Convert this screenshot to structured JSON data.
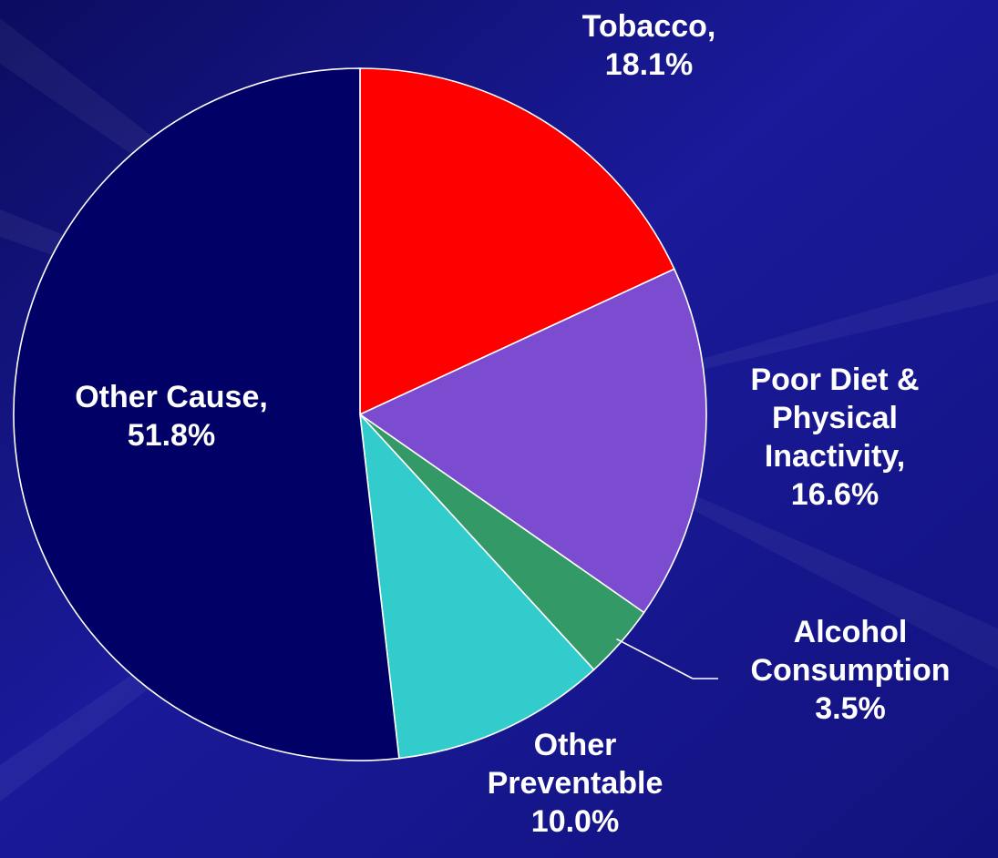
{
  "colors": {
    "background": "#14148a",
    "outline": "#ffffff",
    "label": "#ffffff"
  },
  "chart_data": {
    "type": "pie",
    "start_angle_deg": 0,
    "direction": "clockwise",
    "slices": [
      {
        "name": "Tobacco",
        "value": 18.1,
        "color": "#ff0000",
        "label_lines": [
          "Tobacco,",
          "18.1%"
        ]
      },
      {
        "name": "Poor Diet & Physical Inactivity",
        "value": 16.6,
        "color": "#7b4bd0",
        "label_lines": [
          "Poor Diet &",
          "Physical",
          "Inactivity,",
          "16.6%"
        ]
      },
      {
        "name": "Alcohol Consumption",
        "value": 3.5,
        "color": "#339966",
        "label_lines": [
          "Alcohol",
          "Consumption",
          "3.5%"
        ]
      },
      {
        "name": "Other Preventable",
        "value": 10.0,
        "color": "#33cccc",
        "label_lines": [
          "Other",
          "Preventable",
          "10.0%"
        ]
      },
      {
        "name": "Other Cause",
        "value": 51.8,
        "color": "#000066",
        "label_lines": [
          "Other Cause,",
          "51.8%"
        ]
      }
    ]
  }
}
